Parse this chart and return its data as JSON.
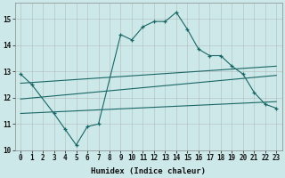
{
  "xlabel": "Humidex (Indice chaleur)",
  "background_color": "#cce8e8",
  "grid_color": "#aaaaaa",
  "line_color": "#1a6666",
  "xlim": [
    -0.5,
    23.5
  ],
  "ylim": [
    10.0,
    15.6
  ],
  "yticks": [
    10,
    11,
    12,
    13,
    14,
    15
  ],
  "xticks": [
    0,
    1,
    2,
    3,
    4,
    5,
    6,
    7,
    8,
    9,
    10,
    11,
    12,
    13,
    14,
    15,
    16,
    17,
    18,
    19,
    20,
    21,
    22,
    23
  ],
  "series1_x": [
    0,
    1,
    3,
    4,
    5,
    6,
    7,
    9,
    10,
    11,
    12,
    13,
    14,
    15,
    16,
    17,
    18,
    19,
    20,
    21,
    22,
    23
  ],
  "series1_y": [
    12.9,
    12.5,
    11.4,
    10.8,
    10.2,
    10.9,
    11.0,
    14.4,
    14.2,
    14.7,
    14.9,
    14.9,
    15.25,
    14.6,
    13.85,
    13.6,
    13.6,
    13.2,
    12.9,
    12.2,
    11.75,
    11.6
  ],
  "series2_x": [
    0,
    23
  ],
  "series2_y": [
    12.55,
    13.2
  ],
  "series3_x": [
    0,
    23
  ],
  "series3_y": [
    11.95,
    12.85
  ],
  "series4_x": [
    0,
    23
  ],
  "series4_y": [
    11.4,
    11.85
  ]
}
